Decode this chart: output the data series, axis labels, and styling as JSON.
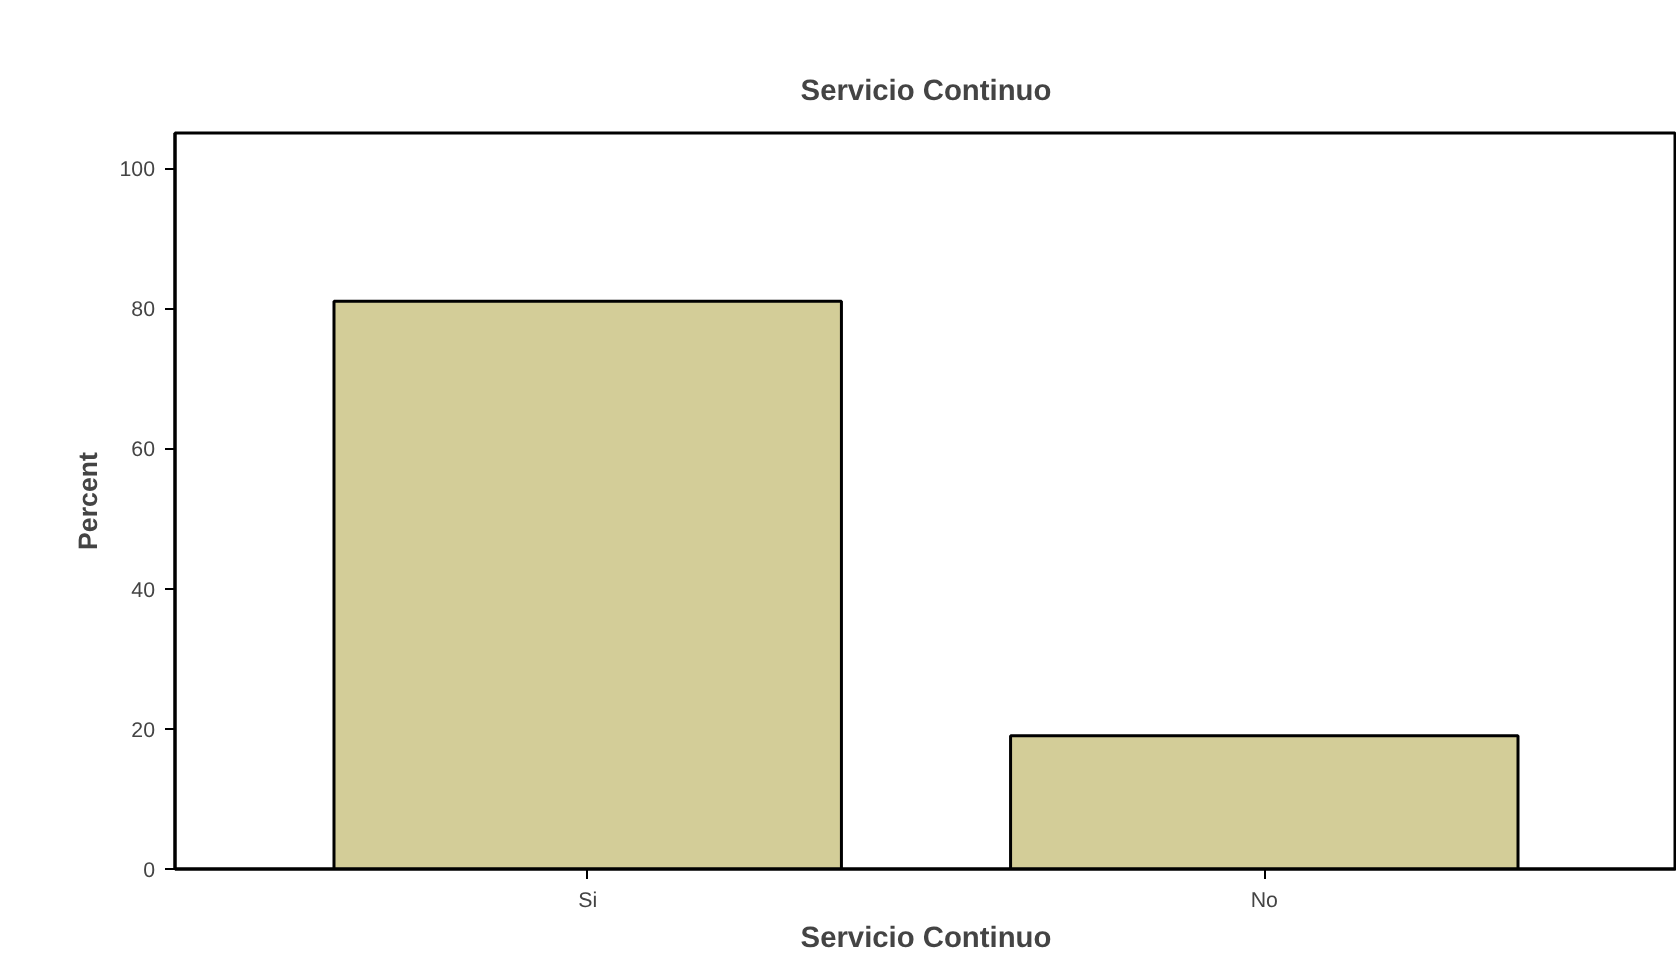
{
  "chart_data": {
    "type": "bar",
    "title": "Servicio Continuo",
    "xlabel": "Servicio Continuo",
    "ylabel": "Percent",
    "categories": [
      "Si",
      "No"
    ],
    "values": [
      81,
      19
    ],
    "color": "#d3cd98",
    "ylim": [
      0,
      105
    ],
    "yticks": [
      0,
      20,
      40,
      60,
      80,
      100
    ],
    "grid": false
  }
}
